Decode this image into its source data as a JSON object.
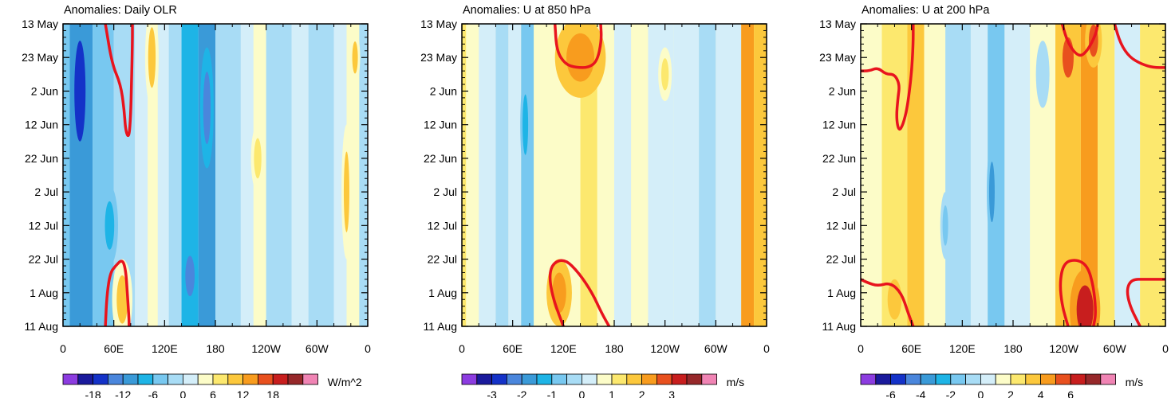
{
  "chart_data": [
    {
      "type": "heatmap",
      "title": "Anomalies: Daily OLR",
      "xlabel": "",
      "ylabel": "",
      "x_ticks": [
        "0",
        "60E",
        "120E",
        "180",
        "120W",
        "60W",
        "0"
      ],
      "y_ticks": [
        "13 May",
        "23 May",
        "2 Jun",
        "12 Jun",
        "22 Jun",
        "2 Jul",
        "12 Jul",
        "22 Jul",
        "1 Aug",
        "11 Aug"
      ],
      "x_range_deg_east": [
        0,
        360
      ],
      "y_range_days_from_13May": [
        0,
        90
      ],
      "colorbar": {
        "units": "W/m^2",
        "labels": [
          "-18",
          "-12",
          "-6",
          "0",
          "6",
          "12",
          "18"
        ],
        "levels": [
          -21,
          -18,
          -15,
          -12,
          -9,
          -6,
          -3,
          0,
          3,
          6,
          9,
          12,
          15,
          18,
          21
        ]
      },
      "bands": [
        {
          "lon0": 0,
          "lon1": 8,
          "value": -4
        },
        {
          "lon0": 8,
          "lon1": 35,
          "value": -12
        },
        {
          "lon0": 35,
          "lon1": 60,
          "value": -6
        },
        {
          "lon0": 60,
          "lon1": 85,
          "value": -3
        },
        {
          "lon0": 85,
          "lon1": 100,
          "value": 2
        },
        {
          "lon0": 100,
          "lon1": 112,
          "value": 5
        },
        {
          "lon0": 112,
          "lon1": 125,
          "value": 2
        },
        {
          "lon0": 125,
          "lon1": 140,
          "value": -3
        },
        {
          "lon0": 140,
          "lon1": 160,
          "value": -9
        },
        {
          "lon0": 160,
          "lon1": 180,
          "value": -12
        },
        {
          "lon0": 180,
          "lon1": 210,
          "value": -2
        },
        {
          "lon0": 210,
          "lon1": 225,
          "value": 1
        },
        {
          "lon0": 225,
          "lon1": 240,
          "value": 4
        },
        {
          "lon0": 240,
          "lon1": 270,
          "value": -2
        },
        {
          "lon0": 270,
          "lon1": 290,
          "value": 1
        },
        {
          "lon0": 290,
          "lon1": 320,
          "value": -3
        },
        {
          "lon0": 320,
          "lon1": 335,
          "value": 2
        },
        {
          "lon0": 335,
          "lon1": 350,
          "value": 4
        },
        {
          "lon0": 350,
          "lon1": 360,
          "value": -2
        }
      ],
      "blobs": [
        {
          "lon": 20,
          "day": 20,
          "rlon": 12,
          "rday": 25,
          "value": -18
        },
        {
          "lon": 55,
          "day": 60,
          "rlon": 10,
          "rday": 12,
          "value": -9
        },
        {
          "lon": 70,
          "day": 82,
          "rlon": 12,
          "rday": 12,
          "value": 9
        },
        {
          "lon": 105,
          "day": 10,
          "rlon": 8,
          "rday": 15,
          "value": 9
        },
        {
          "lon": 150,
          "day": 75,
          "rlon": 10,
          "rday": 10,
          "value": -15
        },
        {
          "lon": 170,
          "day": 25,
          "rlon": 8,
          "rday": 18,
          "value": -15
        },
        {
          "lon": 230,
          "day": 40,
          "rlon": 8,
          "rday": 10,
          "value": 6
        },
        {
          "lon": 335,
          "day": 50,
          "rlon": 6,
          "rday": 20,
          "value": 9
        },
        {
          "lon": 345,
          "day": 10,
          "rlon": 6,
          "rday": 8,
          "value": 9
        }
      ],
      "contours": [
        {
          "points": [
            [
              50,
              0
            ],
            [
              58,
              12
            ],
            [
              68,
              18
            ],
            [
              72,
              25
            ],
            [
              74,
              32
            ],
            [
              78,
              34
            ],
            [
              80,
              27
            ],
            [
              81,
              17
            ],
            [
              82,
              5
            ],
            [
              82,
              0
            ]
          ]
        },
        {
          "points": [
            [
              50,
              90
            ],
            [
              52,
              80
            ],
            [
              56,
              74
            ],
            [
              62,
              72
            ],
            [
              70,
              70
            ],
            [
              74,
              73
            ],
            [
              76,
              80
            ],
            [
              78,
              88
            ],
            [
              78,
              90
            ]
          ]
        }
      ]
    },
    {
      "type": "heatmap",
      "title": "Anomalies: U at 850 hPa",
      "xlabel": "",
      "ylabel": "",
      "x_ticks": [
        "0",
        "60E",
        "120E",
        "180",
        "120W",
        "60W",
        "0"
      ],
      "y_ticks": [
        "13 May",
        "23 May",
        "2 Jun",
        "12 Jun",
        "22 Jun",
        "2 Jul",
        "12 Jul",
        "22 Jul",
        "1 Aug",
        "11 Aug"
      ],
      "x_range_deg_east": [
        0,
        360
      ],
      "y_range_days_from_13May": [
        0,
        90
      ],
      "colorbar": {
        "units": "m/s",
        "labels": [
          "-3",
          "-2",
          "-1",
          "0",
          "1",
          "2",
          "3"
        ],
        "levels": [
          -4,
          -3.5,
          -3,
          -2.5,
          -2,
          -1.5,
          -1,
          -0.5,
          0,
          0.5,
          1,
          1.5,
          2,
          2.5,
          3,
          3.5,
          4
        ]
      },
      "bands": [
        {
          "lon0": 0,
          "lon1": 5,
          "value": 0.7
        },
        {
          "lon0": 5,
          "lon1": 20,
          "value": 0.2
        },
        {
          "lon0": 20,
          "lon1": 40,
          "value": -0.3
        },
        {
          "lon0": 40,
          "lon1": 55,
          "value": -0.7
        },
        {
          "lon0": 55,
          "lon1": 70,
          "value": -0.3
        },
        {
          "lon0": 70,
          "lon1": 85,
          "value": -1.2
        },
        {
          "lon0": 85,
          "lon1": 110,
          "value": 0.3
        },
        {
          "lon0": 110,
          "lon1": 140,
          "value": 0.3
        },
        {
          "lon0": 140,
          "lon1": 160,
          "value": 0.6
        },
        {
          "lon0": 160,
          "lon1": 180,
          "value": 0.2
        },
        {
          "lon0": 180,
          "lon1": 200,
          "value": -0.3
        },
        {
          "lon0": 200,
          "lon1": 220,
          "value": 0.2
        },
        {
          "lon0": 220,
          "lon1": 250,
          "value": -0.4
        },
        {
          "lon0": 250,
          "lon1": 280,
          "value": -0.3
        },
        {
          "lon0": 280,
          "lon1": 300,
          "value": -0.8
        },
        {
          "lon0": 300,
          "lon1": 330,
          "value": -0.3
        },
        {
          "lon0": 330,
          "lon1": 345,
          "value": 1.7
        },
        {
          "lon0": 345,
          "lon1": 360,
          "value": 1.2
        }
      ],
      "blobs": [
        {
          "lon": 140,
          "day": 10,
          "rlon": 30,
          "rday": 12,
          "value": 1.8
        },
        {
          "lon": 115,
          "day": 80,
          "rlon": 15,
          "rday": 10,
          "value": 1.8
        },
        {
          "lon": 75,
          "day": 30,
          "rlon": 6,
          "rday": 15,
          "value": -1.8
        },
        {
          "lon": 240,
          "day": 15,
          "rlon": 8,
          "rday": 8,
          "value": 0.8
        }
      ],
      "contours": [
        {
          "points": [
            [
              110,
              0
            ],
            [
              112,
              8
            ],
            [
              122,
              12
            ],
            [
              135,
              13
            ],
            [
              150,
              13
            ],
            [
              160,
              11
            ],
            [
              165,
              5
            ],
            [
              164,
              0
            ]
          ]
        },
        {
          "points": [
            [
              120,
              90
            ],
            [
              108,
              82
            ],
            [
              103,
              75
            ],
            [
              108,
              71
            ],
            [
              122,
              70
            ],
            [
              138,
              74
            ],
            [
              154,
              80
            ],
            [
              165,
              86
            ],
            [
              174,
              90
            ]
          ]
        }
      ]
    },
    {
      "type": "heatmap",
      "title": "Anomalies: U at 200 hPa",
      "xlabel": "",
      "ylabel": "",
      "x_ticks": [
        "0",
        "60E",
        "120E",
        "180",
        "120W",
        "60W",
        "0"
      ],
      "y_ticks": [
        "13 May",
        "23 May",
        "2 Jun",
        "12 Jun",
        "22 Jun",
        "2 Jul",
        "12 Jul",
        "22 Jul",
        "1 Aug",
        "11 Aug"
      ],
      "x_range_deg_east": [
        0,
        360
      ],
      "y_range_days_from_13May": [
        0,
        90
      ],
      "colorbar": {
        "units": "m/s",
        "labels": [
          "-6",
          "-4",
          "-2",
          "0",
          "2",
          "4",
          "6"
        ],
        "levels": [
          -8,
          -7,
          -6,
          -5,
          -4,
          -3,
          -2,
          -1,
          0,
          1,
          2,
          3,
          4,
          5,
          6,
          7,
          8
        ]
      },
      "bands": [
        {
          "lon0": 0,
          "lon1": 25,
          "value": 0.5
        },
        {
          "lon0": 25,
          "lon1": 55,
          "value": 1.2
        },
        {
          "lon0": 55,
          "lon1": 75,
          "value": 2.5
        },
        {
          "lon0": 75,
          "lon1": 100,
          "value": 0.5
        },
        {
          "lon0": 100,
          "lon1": 130,
          "value": -1.5
        },
        {
          "lon0": 130,
          "lon1": 150,
          "value": -0.5
        },
        {
          "lon0": 150,
          "lon1": 170,
          "value": -3
        },
        {
          "lon0": 170,
          "lon1": 200,
          "value": -0.5
        },
        {
          "lon0": 200,
          "lon1": 230,
          "value": 0.5
        },
        {
          "lon0": 230,
          "lon1": 260,
          "value": 2.5
        },
        {
          "lon0": 260,
          "lon1": 280,
          "value": 3.5
        },
        {
          "lon0": 280,
          "lon1": 300,
          "value": 1.5
        },
        {
          "lon0": 300,
          "lon1": 330,
          "value": -0.5
        },
        {
          "lon0": 330,
          "lon1": 360,
          "value": 1.5
        }
      ],
      "blobs": [
        {
          "lon": 265,
          "day": 85,
          "rlon": 18,
          "rday": 12,
          "value": 5.5
        },
        {
          "lon": 245,
          "day": 10,
          "rlon": 12,
          "rday": 10,
          "value": 4.5
        },
        {
          "lon": 275,
          "day": 5,
          "rlon": 10,
          "rday": 8,
          "value": 4.5
        },
        {
          "lon": 40,
          "day": 82,
          "rlon": 15,
          "rday": 10,
          "value": 2.5
        },
        {
          "lon": 155,
          "day": 50,
          "rlon": 6,
          "rday": 15,
          "value": -5
        },
        {
          "lon": 100,
          "day": 60,
          "rlon": 6,
          "rday": 10,
          "value": -2.5
        },
        {
          "lon": 215,
          "day": 15,
          "rlon": 8,
          "rday": 10,
          "value": -2
        }
      ],
      "contours": [
        {
          "points": [
            [
              62,
              0
            ],
            [
              62,
              6
            ],
            [
              60,
              15
            ],
            [
              55,
              25
            ],
            [
              50,
              30
            ],
            [
              45,
              32
            ],
            [
              42,
              28
            ],
            [
              44,
              22
            ],
            [
              46,
              18
            ],
            [
              40,
              15
            ],
            [
              30,
              15
            ],
            [
              20,
              13
            ],
            [
              10,
              14
            ],
            [
              0,
              14
            ]
          ]
        },
        {
          "points": [
            [
              0,
              76
            ],
            [
              8,
              77
            ],
            [
              20,
              78
            ],
            [
              35,
              77
            ],
            [
              48,
              80
            ],
            [
              56,
              86
            ],
            [
              62,
              90
            ]
          ]
        },
        {
          "points": [
            [
              238,
              0
            ],
            [
              245,
              6
            ],
            [
              258,
              10
            ],
            [
              268,
              8
            ],
            [
              278,
              3
            ],
            [
              280,
              0
            ]
          ]
        },
        {
          "points": [
            [
              300,
              0
            ],
            [
              307,
              6
            ],
            [
              318,
              10
            ],
            [
              332,
              12
            ],
            [
              346,
              13
            ],
            [
              360,
              13
            ]
          ]
        },
        {
          "points": [
            [
              245,
              90
            ],
            [
              238,
              84
            ],
            [
              235,
              77
            ],
            [
              240,
              71
            ],
            [
              255,
              70
            ],
            [
              268,
              72
            ],
            [
              275,
              78
            ],
            [
              278,
              86
            ],
            [
              275,
              90
            ]
          ]
        },
        {
          "points": [
            [
              330,
              90
            ],
            [
              318,
              84
            ],
            [
              314,
              79
            ],
            [
              320,
              76
            ],
            [
              336,
              76
            ],
            [
              360,
              76
            ]
          ]
        }
      ]
    }
  ]
}
